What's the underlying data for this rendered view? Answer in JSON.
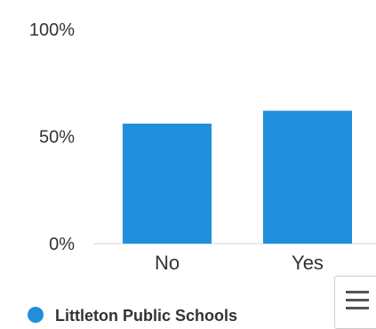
{
  "chart_data": {
    "type": "bar",
    "categories": [
      "No",
      "Yes"
    ],
    "series": [
      {
        "name": "Littleton Public Schools",
        "color": "#1f8fdc",
        "values": [
          56,
          62
        ]
      }
    ],
    "ylim": [
      0,
      100
    ],
    "yticks": [
      "0%",
      "50%",
      "100%"
    ],
    "ytick_values": [
      0,
      50,
      100
    ],
    "grid": false,
    "legend": "bottom-left"
  },
  "menu": {
    "icon": "hamburger-menu-icon"
  }
}
